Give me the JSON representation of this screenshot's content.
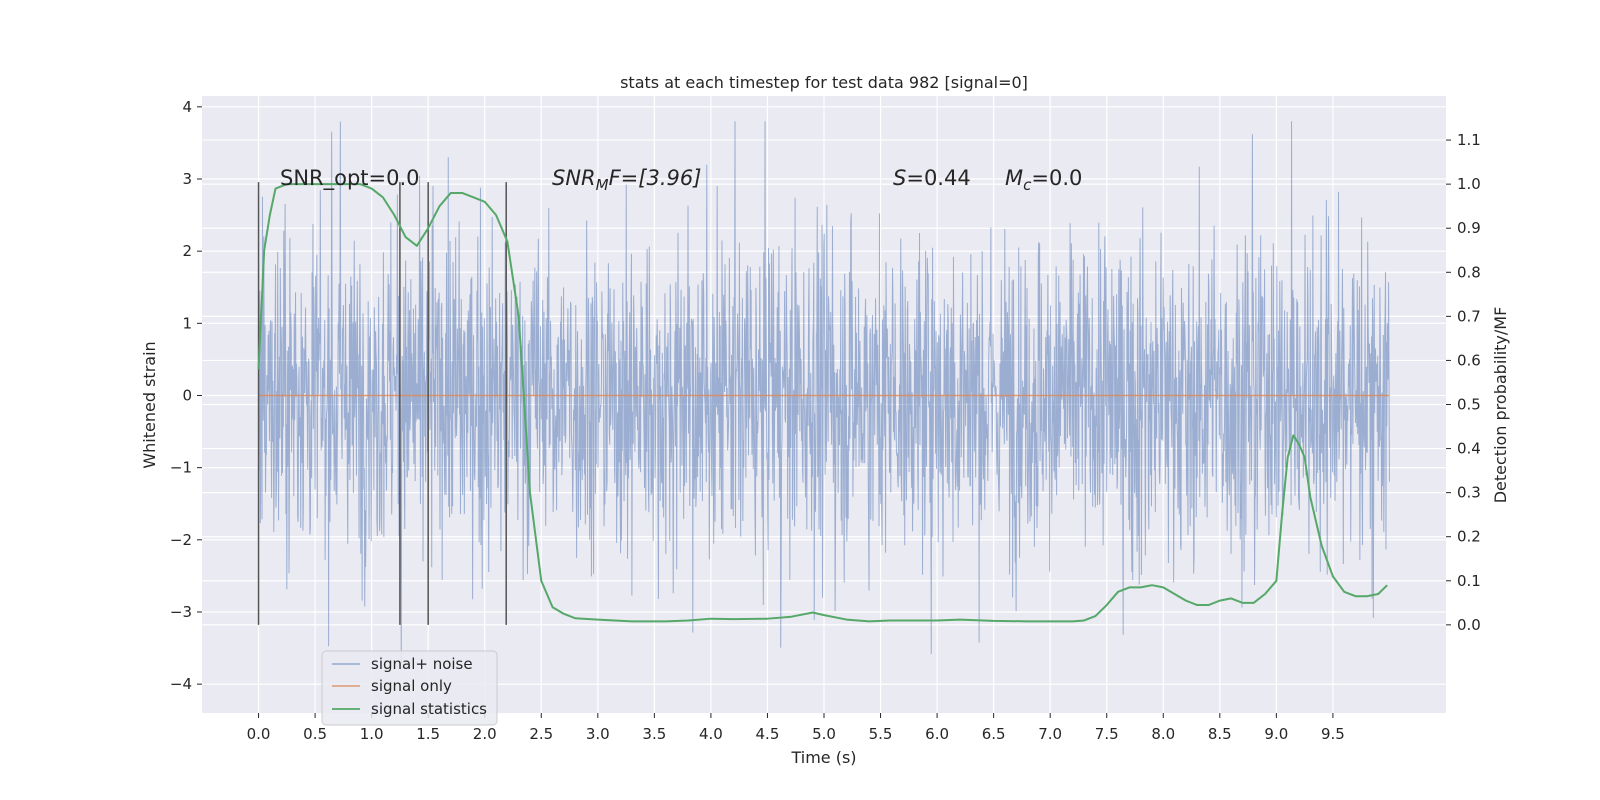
{
  "chart_data": {
    "type": "line",
    "title": "stats at each timestep for test data 982 [signal=0]",
    "xlabel": "Time (s)",
    "ylabel": "Whitened strain",
    "ylabel_right": "Detection probability/MF",
    "xlim": [
      -0.5,
      10.5
    ],
    "ylim": [
      -4.4,
      4.15
    ],
    "ylim_right": [
      -0.2,
      1.2
    ],
    "x_ticks": [
      "0.0",
      "0.5",
      "1.0",
      "1.5",
      "2.0",
      "2.5",
      "3.0",
      "3.5",
      "4.0",
      "4.5",
      "5.0",
      "5.5",
      "6.0",
      "6.5",
      "7.0",
      "7.5",
      "8.0",
      "8.5",
      "9.0",
      "9.5"
    ],
    "y_ticks": [
      "4",
      "3",
      "2",
      "1",
      "0",
      "−1",
      "−2",
      "−3",
      "−4"
    ],
    "y_ticks_right": [
      "1.1",
      "1.0",
      "0.9",
      "0.8",
      "0.7",
      "0.6",
      "0.5",
      "0.4",
      "0.3",
      "0.2",
      "0.1",
      "0.0"
    ],
    "grid": true,
    "legend_position": "lower-left",
    "annotations": {
      "snr_opt": "SNR_opt=0.0",
      "snr_mf_sym": "SNR",
      "snr_mf_sub": "M",
      "snr_mf_rest": "F=[3.96]",
      "s_sym": "S",
      "s_rest": "=0.44",
      "mc_sym": "M",
      "mc_sub": "c",
      "mc_rest": "=0.0"
    },
    "vertical_markers": [
      0.0,
      1.25,
      1.5,
      2.19
    ],
    "series": [
      {
        "name": "signal+ noise",
        "color": "#4c72b0",
        "axis": "left",
        "style": "noise",
        "x_range": [
          0.0,
          10.0
        ],
        "typical_amplitude": 2.0,
        "max_value": 3.8,
        "min_value": -4.0
      },
      {
        "name": "signal only",
        "color": "#dd8452",
        "axis": "left",
        "x": [
          0.0,
          10.0
        ],
        "values": [
          0.0,
          0.0
        ]
      },
      {
        "name": "signal statistics",
        "color": "#55a868",
        "axis": "right",
        "x": [
          0.0,
          0.05,
          0.1,
          0.15,
          0.25,
          0.4,
          0.6,
          0.8,
          0.9,
          1.0,
          1.1,
          1.2,
          1.3,
          1.4,
          1.5,
          1.6,
          1.7,
          1.8,
          1.9,
          2.0,
          2.1,
          2.2,
          2.3,
          2.35,
          2.4,
          2.5,
          2.55,
          2.6,
          2.7,
          2.8,
          3.0,
          3.3,
          3.6,
          3.8,
          4.0,
          4.2,
          4.5,
          4.7,
          4.9,
          5.0,
          5.2,
          5.4,
          5.6,
          5.8,
          6.0,
          6.2,
          6.5,
          6.8,
          7.0,
          7.2,
          7.3,
          7.4,
          7.5,
          7.6,
          7.7,
          7.8,
          7.9,
          8.0,
          8.1,
          8.2,
          8.3,
          8.4,
          8.5,
          8.6,
          8.7,
          8.8,
          8.9,
          9.0,
          9.05,
          9.1,
          9.15,
          9.2,
          9.25,
          9.3,
          9.4,
          9.5,
          9.6,
          9.7,
          9.8,
          9.9,
          9.98
        ],
        "values": [
          0.58,
          0.85,
          0.93,
          0.99,
          1.0,
          1.0,
          1.0,
          1.0,
          1.0,
          0.99,
          0.97,
          0.93,
          0.88,
          0.86,
          0.9,
          0.95,
          0.98,
          0.98,
          0.97,
          0.96,
          0.93,
          0.87,
          0.7,
          0.5,
          0.3,
          0.1,
          0.07,
          0.04,
          0.025,
          0.015,
          0.012,
          0.008,
          0.008,
          0.01,
          0.014,
          0.013,
          0.014,
          0.018,
          0.028,
          0.022,
          0.012,
          0.008,
          0.01,
          0.01,
          0.01,
          0.012,
          0.009,
          0.008,
          0.008,
          0.008,
          0.01,
          0.02,
          0.045,
          0.075,
          0.085,
          0.085,
          0.09,
          0.085,
          0.07,
          0.055,
          0.045,
          0.045,
          0.055,
          0.06,
          0.05,
          0.05,
          0.07,
          0.1,
          0.25,
          0.38,
          0.43,
          0.41,
          0.38,
          0.29,
          0.18,
          0.11,
          0.075,
          0.065,
          0.065,
          0.07,
          0.09
        ]
      }
    ]
  }
}
